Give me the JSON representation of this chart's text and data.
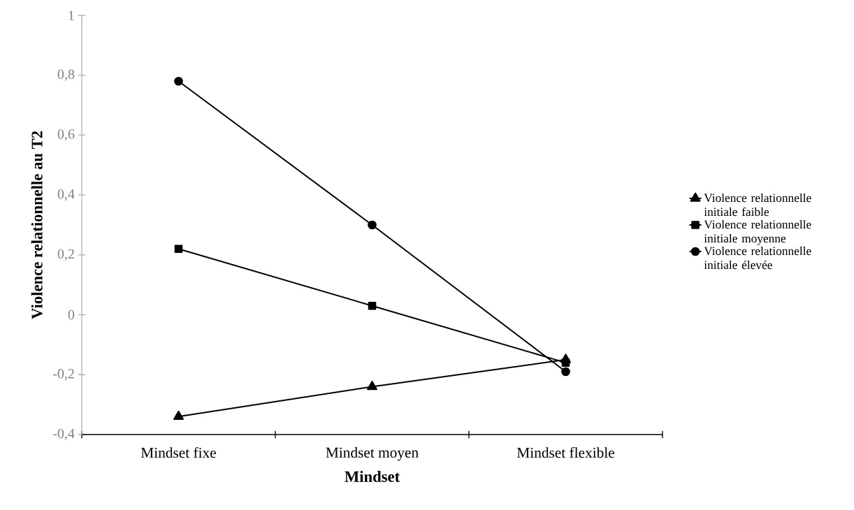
{
  "chart_data": {
    "type": "line",
    "xlabel": "Mindset",
    "ylabel": "Violence relationnelle au T2",
    "categories": [
      "Mindset fixe",
      "Mindset moyen",
      "Mindset flexible"
    ],
    "series": [
      {
        "name": "Violence relationnelle initiale faible",
        "color": "#000000",
        "marker": "triangle",
        "values": [
          -0.34,
          -0.24,
          -0.15
        ]
      },
      {
        "name": "Violence relationnelle initiale moyenne",
        "color": "#000000",
        "marker": "square",
        "values": [
          0.22,
          0.03,
          -0.16
        ]
      },
      {
        "name": "Violence relationnelle initiale élevée",
        "color": "#000000",
        "marker": "circle",
        "values": [
          0.78,
          0.3,
          -0.19
        ]
      }
    ],
    "ylim": [
      -0.4,
      1
    ],
    "yticks": [
      {
        "value": -0.4,
        "label": "-0,4"
      },
      {
        "value": -0.2,
        "label": "-0,2"
      },
      0,
      {
        "value": 0.2,
        "label": "0,2"
      },
      {
        "value": 0.4,
        "label": "0,4"
      },
      {
        "value": 0.6,
        "label": "0,6"
      },
      {
        "value": 0.8,
        "label": "0,8"
      },
      1
    ],
    "grid": false,
    "legend": "right",
    "line_style": "solid"
  }
}
